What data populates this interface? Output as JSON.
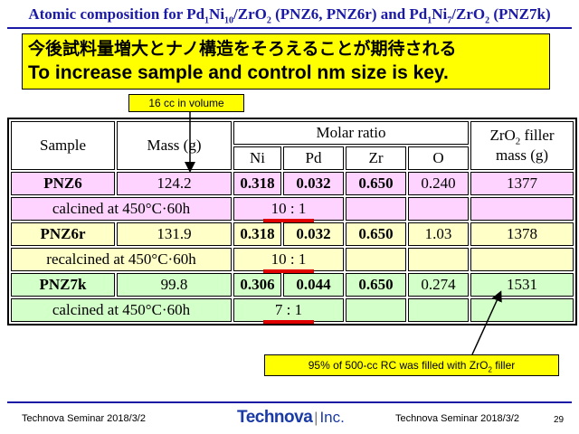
{
  "title": {
    "part1": "Atomic composition for Pd",
    "s1": "1",
    "part2": "Ni",
    "s2": "10",
    "part3": "/ZrO",
    "s3": "2",
    "part4": " (PNZ6, PNZ6r) and Pd",
    "s4": "1",
    "part5": "Ni",
    "s5": "7",
    "part6": "/ZrO",
    "s6": "2",
    "part7": " (PNZ7k)"
  },
  "headline": {
    "jp": "今後試料量増大とナノ構造をそろえることが期待される",
    "en": "To increase sample and control nm size is key."
  },
  "callouts": {
    "volume": "16 cc in volume",
    "filler_pre": "95% of 500-cc RC was filled with ZrO",
    "filler_sub": "2",
    "filler_post": " filler"
  },
  "table": {
    "headers": {
      "sample": "Sample",
      "mass": "Mass (g)",
      "molar_ratio": "Molar ratio",
      "ni": "Ni",
      "pd": "Pd",
      "zr": "Zr",
      "o": "O",
      "filler_pre": "ZrO",
      "filler_sub": "2",
      "filler_post": " filler",
      "filler_unit": "mass (g)"
    },
    "rows": [
      {
        "sample": "PNZ6",
        "mass": "124.2",
        "ni": "0.318",
        "pd": "0.032",
        "zr": "0.650",
        "o": "0.240",
        "filler": "1377",
        "note": "calcined at 450°C·60h",
        "ratio": "10 : 1"
      },
      {
        "sample": "PNZ6r",
        "mass": "131.9",
        "ni": "0.318",
        "pd": "0.032",
        "zr": "0.650",
        "o": "1.03",
        "filler": "1378",
        "note": "recalcined at 450°C·60h",
        "ratio": "10 : 1"
      },
      {
        "sample": "PNZ7k",
        "mass": "99.8",
        "ni": "0.306",
        "pd": "0.044",
        "zr": "0.650",
        "o": "0.274",
        "filler": "1531",
        "note": "calcined at 450°C·60h",
        "ratio": "7 : 1"
      }
    ]
  },
  "footer": {
    "left": "Technova Seminar 2018/3/2",
    "right": "Technova Seminar 2018/3/2",
    "page": "29",
    "logo_main": "Technova",
    "logo_sep": "|",
    "logo_suffix": "Inc."
  },
  "colors": {
    "title": "#1a1aa6",
    "highlight": "#ffff00",
    "row_pnz6": "#ffd3ff",
    "row_pnz6r": "#ffffc8",
    "row_pnz7k": "#d3ffc8",
    "ratio_underline": "#e00000"
  }
}
